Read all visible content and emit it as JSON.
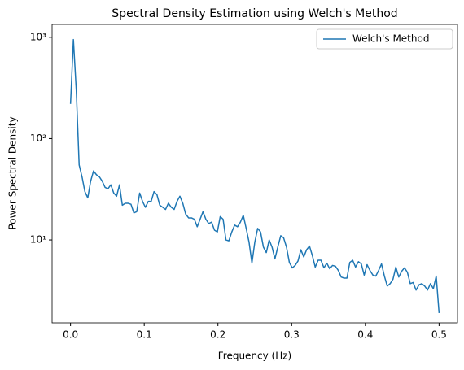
{
  "chart_data": {
    "type": "line",
    "title": "Spectral Density Estimation using Welch's Method",
    "xlabel": "Frequency (Hz)",
    "ylabel": "Power Spectral Density",
    "x": [
      0,
      0.0039,
      0.0078,
      0.0117,
      0.0156,
      0.0195,
      0.0234,
      0.0273,
      0.0312,
      0.0352,
      0.0391,
      0.043,
      0.0469,
      0.0508,
      0.0547,
      0.0586,
      0.0625,
      0.0664,
      0.0703,
      0.0742,
      0.0781,
      0.082,
      0.0859,
      0.0898,
      0.0938,
      0.0977,
      0.1016,
      0.1055,
      0.1094,
      0.1133,
      0.1172,
      0.1211,
      0.125,
      0.1289,
      0.1328,
      0.1367,
      0.1406,
      0.1445,
      0.1484,
      0.1523,
      0.1562,
      0.1602,
      0.1641,
      0.168,
      0.1719,
      0.1758,
      0.1797,
      0.1836,
      0.1875,
      0.1914,
      0.1953,
      0.1992,
      0.2031,
      0.207,
      0.2109,
      0.2148,
      0.2188,
      0.2227,
      0.2266,
      0.2305,
      0.2344,
      0.2383,
      0.2422,
      0.2461,
      0.25,
      0.2539,
      0.2578,
      0.2617,
      0.2656,
      0.2695,
      0.2734,
      0.2773,
      0.2812,
      0.2852,
      0.2891,
      0.293,
      0.2969,
      0.3008,
      0.3047,
      0.3086,
      0.3125,
      0.3164,
      0.3203,
      0.3242,
      0.3281,
      0.332,
      0.3359,
      0.3398,
      0.3438,
      0.3477,
      0.3516,
      0.3555,
      0.3594,
      0.3633,
      0.3672,
      0.3711,
      0.375,
      0.3789,
      0.3828,
      0.3867,
      0.3906,
      0.3945,
      0.3984,
      0.4023,
      0.4062,
      0.4102,
      0.4141,
      0.418,
      0.4219,
      0.4258,
      0.4297,
      0.4336,
      0.4375,
      0.4414,
      0.4453,
      0.4492,
      0.4531,
      0.457,
      0.4609,
      0.4648,
      0.4688,
      0.4727,
      0.4766,
      0.4805,
      0.4844,
      0.4883,
      0.4922,
      0.4961,
      0.5
    ],
    "series": [
      {
        "name": "Welch's Method",
        "color": "#1f77b4",
        "values": [
          220,
          950,
          300,
          55,
          42,
          30,
          26,
          38,
          48,
          44,
          42,
          38,
          33,
          32,
          35,
          29,
          27,
          35,
          22,
          23,
          23,
          22.5,
          18.5,
          19,
          29,
          24,
          21,
          24,
          24,
          30,
          28,
          22,
          21,
          20,
          23,
          21,
          20,
          24,
          27,
          23,
          18,
          16.5,
          16.5,
          16,
          13.5,
          16,
          19,
          16,
          14.5,
          15,
          12.5,
          12,
          17,
          16,
          10,
          9.8,
          12,
          14,
          13.5,
          15,
          17.5,
          13,
          9.5,
          5.9,
          9.5,
          13,
          12,
          8.5,
          7.5,
          10,
          8.5,
          6.5,
          8.5,
          11,
          10.5,
          8.5,
          6,
          5.3,
          5.6,
          6.2,
          8,
          6.8,
          8,
          8.7,
          7,
          5.4,
          6.3,
          6.3,
          5.3,
          5.9,
          5.2,
          5.6,
          5.5,
          5,
          4.3,
          4.2,
          4.2,
          6,
          6.3,
          5.4,
          6.1,
          5.8,
          4.5,
          5.7,
          5,
          4.5,
          4.4,
          5,
          5.8,
          4.4,
          3.5,
          3.7,
          4.1,
          5.4,
          4.3,
          4.9,
          5.3,
          4.8,
          3.7,
          3.8,
          3.2,
          3.6,
          3.7,
          3.5,
          3.2,
          3.7,
          3.3,
          4.4,
          1.9
        ]
      }
    ],
    "xlim": [
      -0.025,
      0.525
    ],
    "xticks": [
      {
        "value": 0,
        "label": "0.0"
      },
      0.1,
      0.2,
      0.3,
      0.4,
      0.5
    ],
    "ylim": [
      1.52,
      1340
    ],
    "yscale": "log",
    "yticks": [
      {
        "value": 10,
        "label": "10¹"
      },
      {
        "value": 100,
        "label": "10²"
      },
      {
        "value": 1000,
        "label": "10³"
      }
    ],
    "legend": "upper right"
  }
}
